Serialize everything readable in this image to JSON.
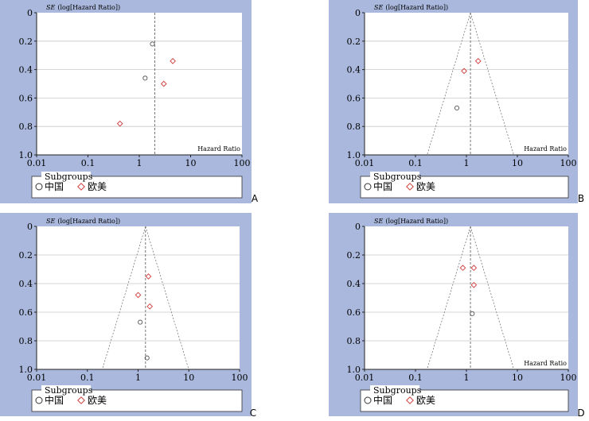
{
  "chart_data": [
    {
      "panel": "A",
      "type": "scatter",
      "ylabel_italic": "SE",
      "ylabel_rest": "(log[Hazard Ratio])",
      "xlabel": "Hazard Ratio",
      "xscale": "log",
      "xlim": [
        0.01,
        100
      ],
      "ylim": [
        0,
        1.0
      ],
      "yinverted": true,
      "xticks": [
        "0.01",
        "0.1",
        "1",
        "10",
        "100"
      ],
      "yticks": [
        "0",
        "0.2",
        "0.4",
        "0.6",
        "0.8",
        "1.0"
      ],
      "funnel": false,
      "pooled_estimate": 2.0,
      "series": [
        {
          "name": "中国",
          "marker": "circle",
          "color": "#555555",
          "points": [
            [
              1.8,
              0.22
            ],
            [
              1.3,
              0.46
            ]
          ]
        },
        {
          "name": "欧美",
          "marker": "diamond",
          "color": "#d33b3b",
          "points": [
            [
              4.5,
              0.34
            ],
            [
              3.0,
              0.5
            ],
            [
              0.42,
              0.78
            ]
          ]
        }
      ],
      "legend": {
        "title": "Subgroups",
        "placement": "bottom"
      }
    },
    {
      "panel": "B",
      "type": "scatter",
      "ylabel_italic": "SE",
      "ylabel_rest": "(log[Hazard Ratio])",
      "xlabel": "Hazard Ratio",
      "xscale": "log",
      "xlim": [
        0.01,
        100
      ],
      "ylim": [
        0,
        1.0
      ],
      "yinverted": true,
      "xticks": [
        "0.01",
        "0.1",
        "1",
        "10",
        "100"
      ],
      "yticks": [
        "0",
        "0.2",
        "0.4",
        "0.6",
        "0.8",
        "1.0"
      ],
      "funnel": true,
      "pooled_estimate": 1.2,
      "series": [
        {
          "name": "中国",
          "marker": "circle",
          "color": "#555555",
          "points": [
            [
              0.65,
              0.67
            ]
          ]
        },
        {
          "name": "欧美",
          "marker": "diamond",
          "color": "#d33b3b",
          "points": [
            [
              1.7,
              0.34
            ],
            [
              0.9,
              0.41
            ]
          ]
        }
      ],
      "legend": {
        "title": "Subgroups",
        "placement": "bottom"
      }
    },
    {
      "panel": "C",
      "type": "scatter",
      "ylabel_italic": "SE",
      "ylabel_rest": "(log[Hazard Ratio])",
      "xlabel": "",
      "xscale": "log",
      "xlim": [
        0.01,
        100
      ],
      "ylim": [
        0,
        1.0
      ],
      "yinverted": true,
      "xticks": [
        "0.01",
        "0.1",
        "1",
        "10",
        "100"
      ],
      "yticks": [
        "0",
        "0.2",
        "0.4",
        "0.6",
        "0.8",
        "1.0"
      ],
      "funnel": true,
      "pooled_estimate": 1.4,
      "series": [
        {
          "name": "中国",
          "marker": "circle",
          "color": "#555555",
          "points": [
            [
              1.1,
              0.67
            ],
            [
              1.5,
              0.92
            ]
          ]
        },
        {
          "name": "欧美",
          "marker": "diamond",
          "color": "#d33b3b",
          "points": [
            [
              1.6,
              0.35
            ],
            [
              1.0,
              0.48
            ],
            [
              1.7,
              0.56
            ]
          ]
        }
      ],
      "legend": {
        "title": "Subgroups",
        "placement": "bottom"
      }
    },
    {
      "panel": "D",
      "type": "scatter",
      "ylabel_italic": "SE",
      "ylabel_rest": "(log[Hazard Ratio])",
      "xlabel": "Hazard Ratio",
      "xscale": "log",
      "xlim": [
        0.01,
        100
      ],
      "ylim": [
        0,
        1.0
      ],
      "yinverted": true,
      "xticks": [
        "0.01",
        "0.1",
        "1",
        "10",
        "100"
      ],
      "yticks": [
        "0",
        "0.2",
        "0.4",
        "0.6",
        "0.8",
        "1.0"
      ],
      "funnel": true,
      "pooled_estimate": 1.2,
      "series": [
        {
          "name": "中国",
          "marker": "circle",
          "color": "#555555",
          "points": [
            [
              1.3,
              0.61
            ]
          ]
        },
        {
          "name": "欧美",
          "marker": "diamond",
          "color": "#d33b3b",
          "points": [
            [
              0.85,
              0.29
            ],
            [
              1.4,
              0.29
            ],
            [
              1.4,
              0.41
            ]
          ]
        }
      ],
      "legend": {
        "title": "Subgroups",
        "placement": "bottom"
      }
    }
  ],
  "colors": {
    "panel_background": "#a9b8dc",
    "plot_background": "#ffffff",
    "grid": "#c8c8c8",
    "axis": "#222222",
    "china_marker": "#555555",
    "west_marker": "#d33b3b"
  }
}
